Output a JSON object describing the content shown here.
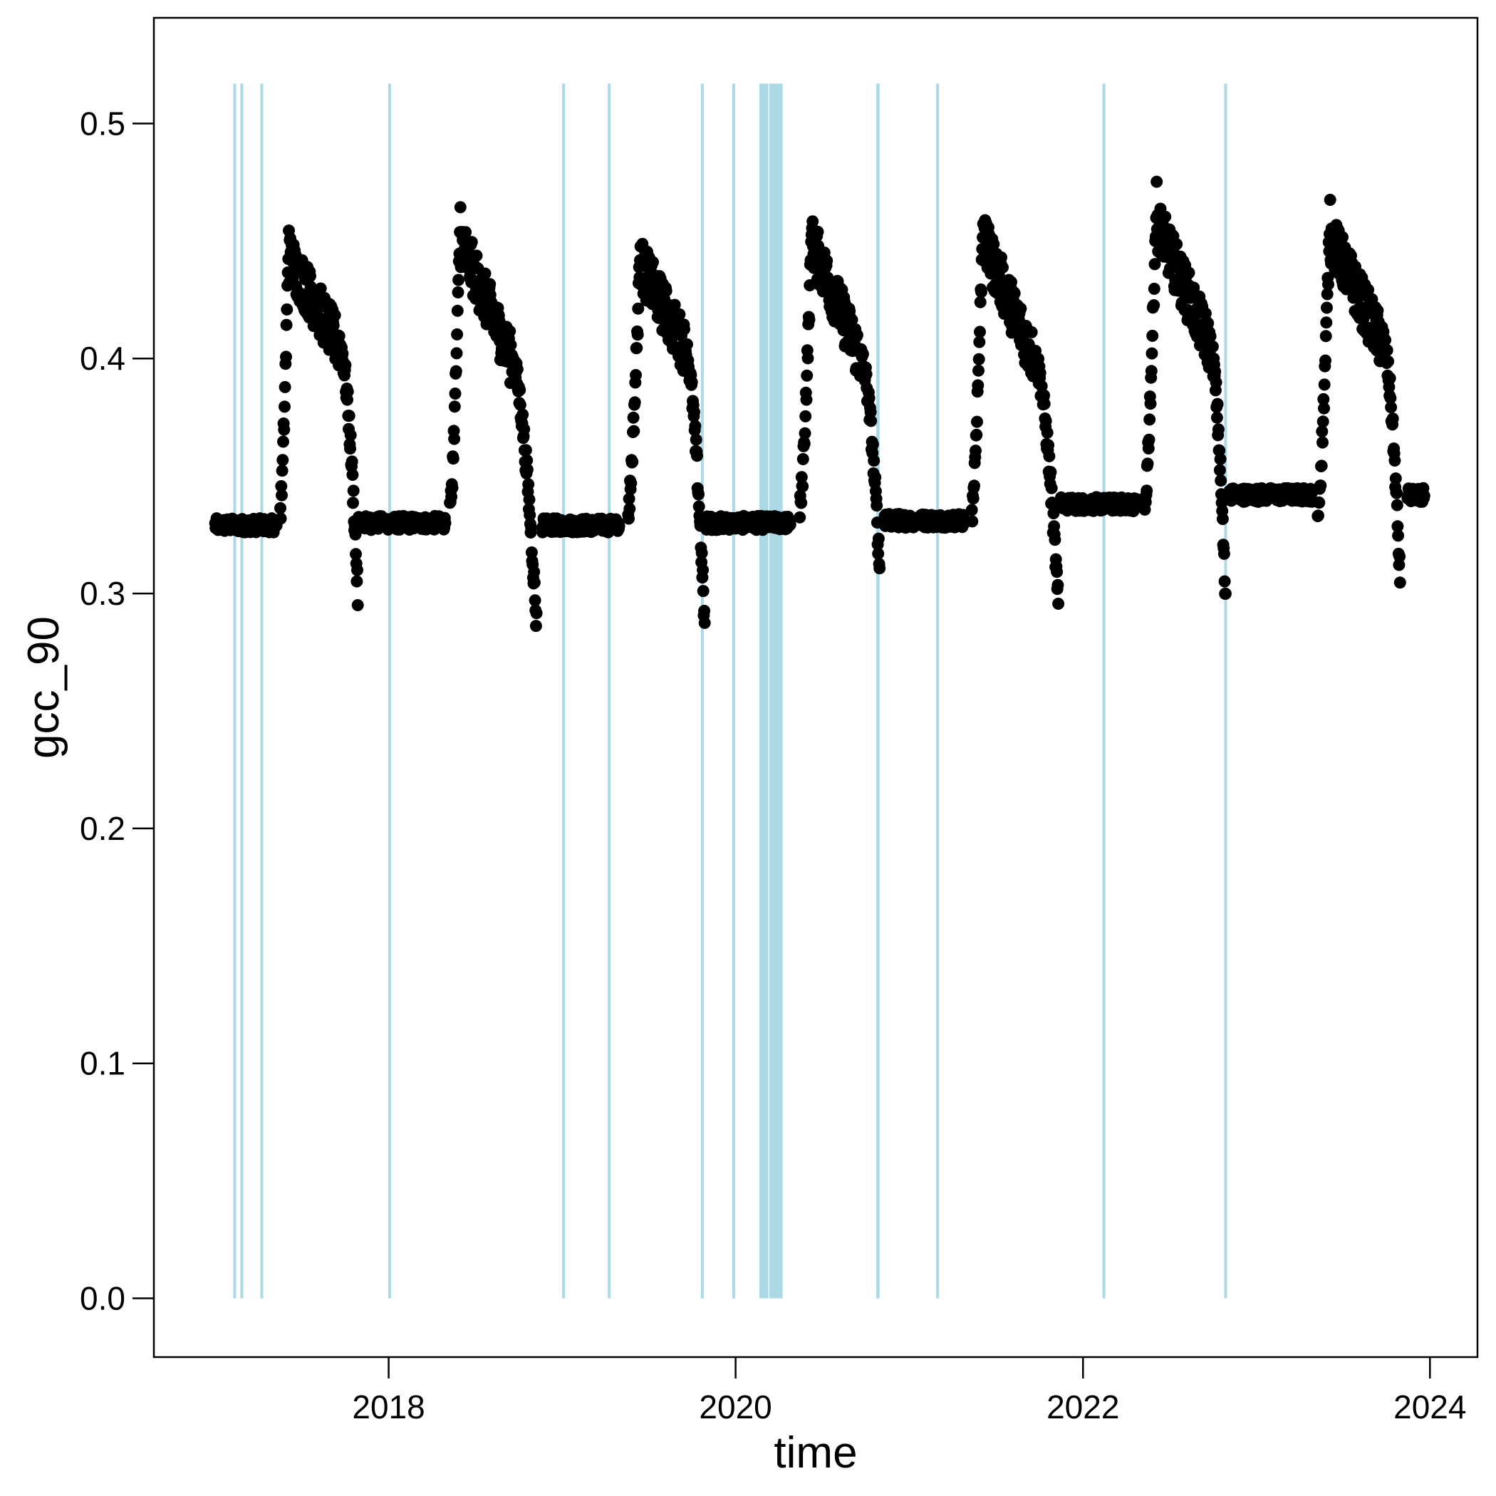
{
  "chart_data": {
    "type": "scatter",
    "title": "",
    "xlabel": "time",
    "ylabel": "gcc_90",
    "xlim": [
      "2016-08-25",
      "2024-04-10"
    ],
    "ylim": [
      -0.025,
      0.545
    ],
    "x_ticks": [
      "2018",
      "2020",
      "2022",
      "2024"
    ],
    "y_ticks": [
      "0.0",
      "0.1",
      "0.2",
      "0.3",
      "0.4",
      "0.5"
    ],
    "grid": false,
    "legend": "none",
    "point_color": "#000000",
    "band_color": "#add8e6",
    "bands": {
      "y_range": [
        0.0,
        0.517
      ],
      "intervals": [
        [
          "2017-02-08",
          "2017-02-14"
        ],
        [
          "2017-02-23",
          "2017-02-26"
        ],
        [
          "2017-04-06",
          "2017-04-10"
        ],
        [
          "2017-12-31",
          "2018-01-03"
        ],
        [
          "2019-01-01",
          "2019-01-03"
        ],
        [
          "2019-04-07",
          "2019-04-09"
        ],
        [
          "2019-10-20",
          "2019-10-25"
        ],
        [
          "2019-12-25",
          "2019-12-28"
        ],
        [
          "2020-02-20",
          "2020-03-10"
        ],
        [
          "2020-03-12",
          "2020-04-09"
        ],
        [
          "2020-10-23",
          "2020-10-30"
        ],
        [
          "2021-02-26",
          "2021-03-01"
        ],
        [
          "2022-02-11",
          "2022-02-16"
        ],
        [
          "2022-10-25",
          "2022-10-29"
        ]
      ]
    },
    "profile": {
      "description": "daily gcc_90 series reconstructed from visible seasonal pattern",
      "segments": [
        {
          "start": "2017-01-01",
          "end": "2017-05-10",
          "base": 0.329
        },
        {
          "start": "2017-10-29",
          "end": "2018-04-30",
          "base": 0.33
        },
        {
          "start": "2018-11-20",
          "end": "2019-05-01",
          "base": 0.329
        },
        {
          "start": "2019-11-01",
          "end": "2020-04-25",
          "base": 0.33
        },
        {
          "start": "2020-11-08",
          "end": "2021-04-25",
          "base": 0.331
        },
        {
          "start": "2021-11-15",
          "end": "2022-04-25",
          "base": 0.338
        },
        {
          "start": "2022-11-01",
          "end": "2023-04-28",
          "base": 0.342
        },
        {
          "start": "2023-11-15",
          "end": "2023-12-20",
          "base": 0.342
        }
      ],
      "seasons": [
        {
          "green_up": "2017-05-18",
          "peak_date": "2017-06-05",
          "peak": 0.455,
          "autumn_start": "2017-09-20",
          "autumn_value": 0.405,
          "drop_end": "2017-10-28",
          "minimum": 0.299
        },
        {
          "green_up": "2018-05-10",
          "peak_date": "2018-06-01",
          "peak": 0.462,
          "autumn_start": "2018-09-15",
          "autumn_value": 0.4,
          "drop_end": "2018-11-08",
          "minimum": 0.287
        },
        {
          "green_up": "2019-05-20",
          "peak_date": "2019-06-15",
          "peak": 0.452,
          "autumn_start": "2019-09-15",
          "autumn_value": 0.405,
          "drop_end": "2019-10-28",
          "minimum": 0.285
        },
        {
          "green_up": "2020-05-15",
          "peak_date": "2020-06-10",
          "peak": 0.461,
          "autumn_start": "2020-09-20",
          "autumn_value": 0.4,
          "drop_end": "2020-10-30",
          "minimum": 0.311
        },
        {
          "green_up": "2021-05-12",
          "peak_date": "2021-06-05",
          "peak": 0.462,
          "autumn_start": "2021-09-20",
          "autumn_value": 0.4,
          "drop_end": "2021-11-10",
          "minimum": 0.294
        },
        {
          "green_up": "2022-05-10",
          "peak_date": "2022-06-05",
          "peak": 0.47,
          "autumn_start": "2022-09-25",
          "autumn_value": 0.405,
          "drop_end": "2022-10-28",
          "minimum": 0.295
        },
        {
          "green_up": "2023-05-10",
          "peak_date": "2023-06-05",
          "peak": 0.464,
          "autumn_start": "2023-09-25",
          "autumn_value": 0.405,
          "drop_end": "2023-10-30",
          "minimum": 0.305
        }
      ]
    }
  }
}
